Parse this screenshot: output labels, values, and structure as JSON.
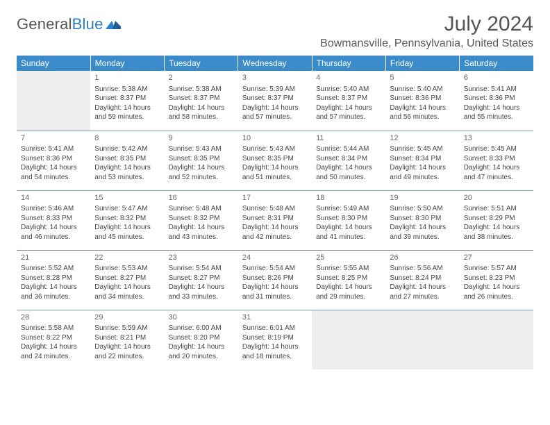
{
  "logo": {
    "part1": "General",
    "part2": "Blue"
  },
  "title": "July 2024",
  "location": "Bowmansville, Pennsylvania, United States",
  "columns": [
    "Sunday",
    "Monday",
    "Tuesday",
    "Wednesday",
    "Thursday",
    "Friday",
    "Saturday"
  ],
  "colors": {
    "header_bg": "#3b8bca",
    "header_fg": "#ffffff",
    "blank_bg": "#eeeeee",
    "border": "#7a9ab8",
    "text": "#444444",
    "title_fg": "#555555"
  },
  "weeks": [
    [
      {
        "blank": true
      },
      {
        "day": "1",
        "sunrise": "5:38 AM",
        "sunset": "8:37 PM",
        "daylight": "14 hours and 59 minutes."
      },
      {
        "day": "2",
        "sunrise": "5:38 AM",
        "sunset": "8:37 PM",
        "daylight": "14 hours and 58 minutes."
      },
      {
        "day": "3",
        "sunrise": "5:39 AM",
        "sunset": "8:37 PM",
        "daylight": "14 hours and 57 minutes."
      },
      {
        "day": "4",
        "sunrise": "5:40 AM",
        "sunset": "8:37 PM",
        "daylight": "14 hours and 57 minutes."
      },
      {
        "day": "5",
        "sunrise": "5:40 AM",
        "sunset": "8:36 PM",
        "daylight": "14 hours and 56 minutes."
      },
      {
        "day": "6",
        "sunrise": "5:41 AM",
        "sunset": "8:36 PM",
        "daylight": "14 hours and 55 minutes."
      }
    ],
    [
      {
        "day": "7",
        "sunrise": "5:41 AM",
        "sunset": "8:36 PM",
        "daylight": "14 hours and 54 minutes."
      },
      {
        "day": "8",
        "sunrise": "5:42 AM",
        "sunset": "8:35 PM",
        "daylight": "14 hours and 53 minutes."
      },
      {
        "day": "9",
        "sunrise": "5:43 AM",
        "sunset": "8:35 PM",
        "daylight": "14 hours and 52 minutes."
      },
      {
        "day": "10",
        "sunrise": "5:43 AM",
        "sunset": "8:35 PM",
        "daylight": "14 hours and 51 minutes."
      },
      {
        "day": "11",
        "sunrise": "5:44 AM",
        "sunset": "8:34 PM",
        "daylight": "14 hours and 50 minutes."
      },
      {
        "day": "12",
        "sunrise": "5:45 AM",
        "sunset": "8:34 PM",
        "daylight": "14 hours and 49 minutes."
      },
      {
        "day": "13",
        "sunrise": "5:45 AM",
        "sunset": "8:33 PM",
        "daylight": "14 hours and 47 minutes."
      }
    ],
    [
      {
        "day": "14",
        "sunrise": "5:46 AM",
        "sunset": "8:33 PM",
        "daylight": "14 hours and 46 minutes."
      },
      {
        "day": "15",
        "sunrise": "5:47 AM",
        "sunset": "8:32 PM",
        "daylight": "14 hours and 45 minutes."
      },
      {
        "day": "16",
        "sunrise": "5:48 AM",
        "sunset": "8:32 PM",
        "daylight": "14 hours and 43 minutes."
      },
      {
        "day": "17",
        "sunrise": "5:48 AM",
        "sunset": "8:31 PM",
        "daylight": "14 hours and 42 minutes."
      },
      {
        "day": "18",
        "sunrise": "5:49 AM",
        "sunset": "8:30 PM",
        "daylight": "14 hours and 41 minutes."
      },
      {
        "day": "19",
        "sunrise": "5:50 AM",
        "sunset": "8:30 PM",
        "daylight": "14 hours and 39 minutes."
      },
      {
        "day": "20",
        "sunrise": "5:51 AM",
        "sunset": "8:29 PM",
        "daylight": "14 hours and 38 minutes."
      }
    ],
    [
      {
        "day": "21",
        "sunrise": "5:52 AM",
        "sunset": "8:28 PM",
        "daylight": "14 hours and 36 minutes."
      },
      {
        "day": "22",
        "sunrise": "5:53 AM",
        "sunset": "8:27 PM",
        "daylight": "14 hours and 34 minutes."
      },
      {
        "day": "23",
        "sunrise": "5:54 AM",
        "sunset": "8:27 PM",
        "daylight": "14 hours and 33 minutes."
      },
      {
        "day": "24",
        "sunrise": "5:54 AM",
        "sunset": "8:26 PM",
        "daylight": "14 hours and 31 minutes."
      },
      {
        "day": "25",
        "sunrise": "5:55 AM",
        "sunset": "8:25 PM",
        "daylight": "14 hours and 29 minutes."
      },
      {
        "day": "26",
        "sunrise": "5:56 AM",
        "sunset": "8:24 PM",
        "daylight": "14 hours and 27 minutes."
      },
      {
        "day": "27",
        "sunrise": "5:57 AM",
        "sunset": "8:23 PM",
        "daylight": "14 hours and 26 minutes."
      }
    ],
    [
      {
        "day": "28",
        "sunrise": "5:58 AM",
        "sunset": "8:22 PM",
        "daylight": "14 hours and 24 minutes."
      },
      {
        "day": "29",
        "sunrise": "5:59 AM",
        "sunset": "8:21 PM",
        "daylight": "14 hours and 22 minutes."
      },
      {
        "day": "30",
        "sunrise": "6:00 AM",
        "sunset": "8:20 PM",
        "daylight": "14 hours and 20 minutes."
      },
      {
        "day": "31",
        "sunrise": "6:01 AM",
        "sunset": "8:19 PM",
        "daylight": "14 hours and 18 minutes."
      },
      {
        "blank": true
      },
      {
        "blank": true
      },
      {
        "blank": true
      }
    ]
  ],
  "labels": {
    "sunrise": "Sunrise: ",
    "sunset": "Sunset: ",
    "daylight": "Daylight: "
  }
}
